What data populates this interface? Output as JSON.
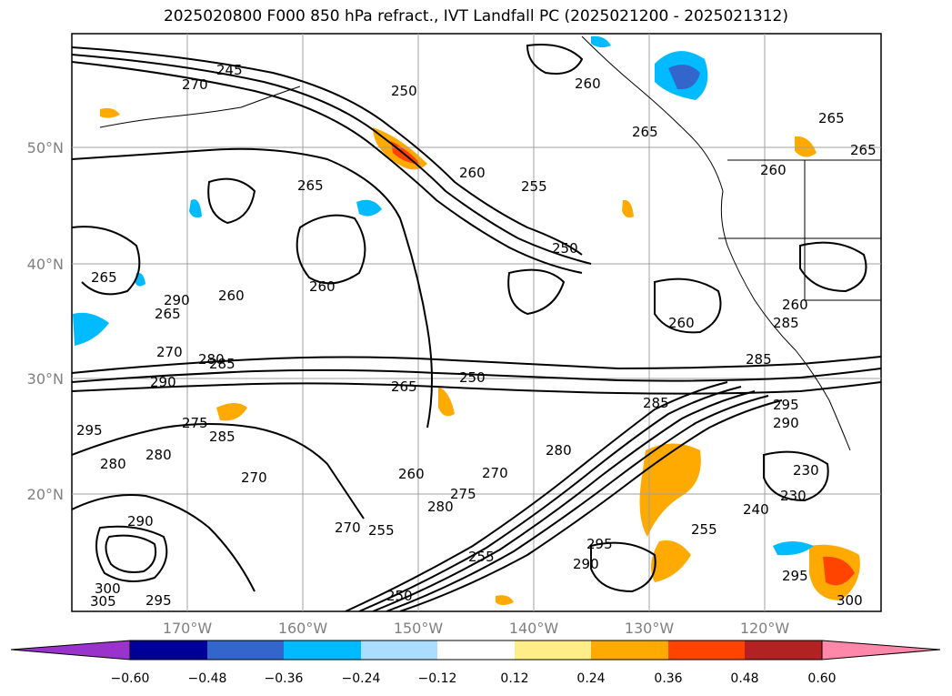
{
  "title": "2025020800 F000 850 hPa refract., IVT Landfall PC (2025021200 - 2025021312)",
  "map": {
    "lat_labels": [
      "50°N",
      "40°N",
      "30°N",
      "20°N"
    ],
    "lon_labels": [
      "170°W",
      "160°W",
      "150°W",
      "140°W",
      "130°W",
      "120°W"
    ],
    "grid": true
  },
  "contour_labels": [
    "245",
    "270",
    "250",
    "260",
    "265",
    "265",
    "255",
    "260",
    "265",
    "260",
    "265",
    "250",
    "260",
    "265",
    "260",
    "270",
    "280",
    "285",
    "290",
    "295",
    "265",
    "275",
    "285",
    "280",
    "270",
    "260",
    "255",
    "280",
    "275",
    "270",
    "285",
    "290",
    "295",
    "255",
    "230",
    "230",
    "240",
    "290",
    "305",
    "300",
    "295",
    "295",
    "300",
    "250",
    "255",
    "260",
    "290",
    "285",
    "285",
    "280",
    "290",
    "295",
    "250",
    "260",
    "265",
    "270",
    "280"
  ],
  "colorbar": {
    "ticks": [
      "−0.60",
      "−0.48",
      "−0.36",
      "−0.24",
      "−0.12",
      "0.12",
      "0.24",
      "0.36",
      "0.48",
      "0.60"
    ],
    "colors": [
      "#9933cc",
      "#000099",
      "#3366cc",
      "#00bbff",
      "#aaddff",
      "#ffffff",
      "#ffee88",
      "#ffaa00",
      "#ff4400",
      "#b22222",
      "#ff88aa"
    ]
  }
}
